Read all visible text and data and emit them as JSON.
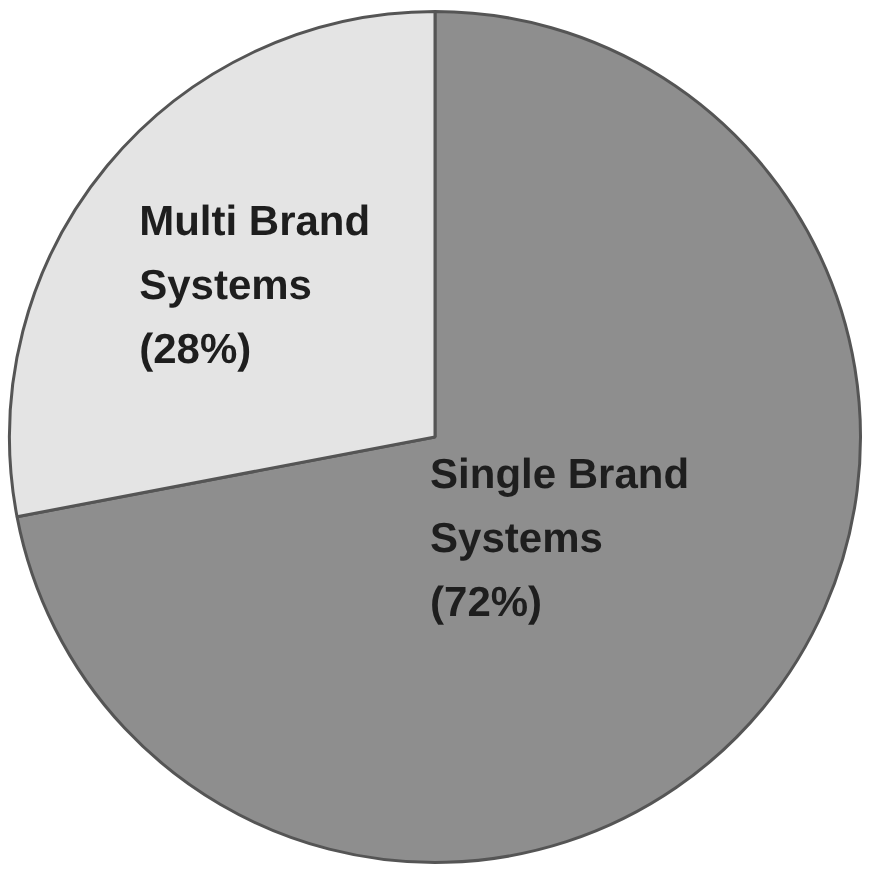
{
  "chart_data": {
    "type": "pie",
    "categories": [
      "Single Brand Systems",
      "Multi Brand Systems"
    ],
    "values": [
      72,
      28
    ],
    "colors": [
      "#8e8e8e",
      "#e4e4e4"
    ],
    "value_labels": [
      "(72%)",
      "(28%)"
    ],
    "legend": false
  }
}
